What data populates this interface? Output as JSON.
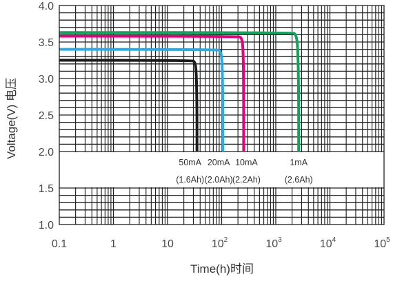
{
  "chart_data": {
    "type": "line",
    "xlabel": "Time(h)时间",
    "ylabel": "Voltage(V) 电压",
    "x_scale": "log",
    "xlim": [
      0.1,
      100000
    ],
    "ylim": [
      1.0,
      4.0
    ],
    "x_ticks": [
      {
        "base": "0.1",
        "exp": ""
      },
      {
        "base": "1",
        "exp": ""
      },
      {
        "base": "10",
        "exp": ""
      },
      {
        "base": "10",
        "exp": "2"
      },
      {
        "base": "10",
        "exp": "3"
      },
      {
        "base": "10",
        "exp": "4"
      },
      {
        "base": "10",
        "exp": "5"
      }
    ],
    "y_ticks": [
      "1.0",
      "1.5",
      "2.0",
      "2.5",
      "3.0",
      "3.5",
      "4.0"
    ],
    "grid": true,
    "series": [
      {
        "name": "50mA",
        "capacity": "(1.6Ah)",
        "color": "#1c1c1c",
        "x": [
          0.1,
          28,
          32,
          34,
          35,
          35
        ],
        "y": [
          3.25,
          3.25,
          3.23,
          3.1,
          2.6,
          2.0
        ]
      },
      {
        "name": "20mA",
        "capacity": "(2.0Ah)",
        "color": "#2aace2",
        "x": [
          0.1,
          80,
          95,
          102,
          105,
          105
        ],
        "y": [
          3.4,
          3.4,
          3.38,
          3.25,
          2.7,
          2.0
        ]
      },
      {
        "name": "10mA",
        "capacity": "(2.2Ah)",
        "color": "#e4007f",
        "x": [
          0.1,
          200,
          235,
          250,
          255,
          255
        ],
        "y": [
          3.58,
          3.58,
          3.56,
          3.4,
          2.8,
          2.0
        ]
      },
      {
        "name": "1mA",
        "capacity": "(2.6Ah)",
        "color": "#0ea55a",
        "x": [
          0.1,
          2000,
          2350,
          2550,
          2650,
          2650
        ],
        "y": [
          3.63,
          3.63,
          3.61,
          3.45,
          2.8,
          2.0
        ]
      }
    ]
  }
}
